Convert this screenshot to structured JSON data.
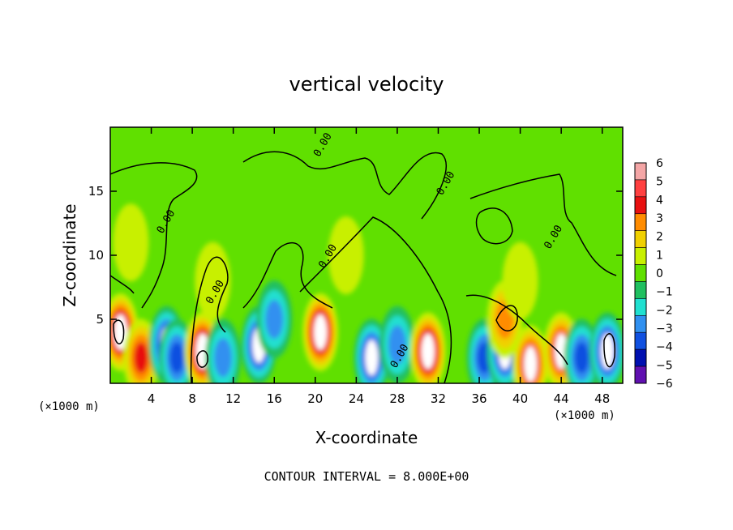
{
  "chart_data": {
    "type": "heatmap",
    "title": "vertical velocity",
    "xlabel": "X-coordinate",
    "ylabel": "Z-coordinate",
    "x_unit": "(×1000 m)",
    "xlim": [
      0,
      50
    ],
    "ylim": [
      0,
      20
    ],
    "x_ticks": [
      "4",
      "8",
      "12",
      "16",
      "20",
      "24",
      "28",
      "32",
      "36",
      "40",
      "44",
      "48"
    ],
    "y_ticks": [
      "5",
      "10",
      "15"
    ],
    "colorbar": {
      "ticks": [
        "6",
        "5",
        "4",
        "3",
        "2",
        "1",
        "0",
        "−1",
        "−2",
        "−3",
        "−4",
        "−5",
        "−6"
      ],
      "colors": [
        "#f4a6a6",
        "#ff4040",
        "#e81010",
        "#ff8c00",
        "#f0d000",
        "#c8f000",
        "#60e000",
        "#20c060",
        "#20e0d0",
        "#3090f0",
        "#1050e0",
        "#0010b0",
        "#6010b0"
      ]
    },
    "contour_label": "0.00",
    "cells": [
      {
        "x": 1,
        "z": 4,
        "w": 6
      },
      {
        "x": 3,
        "z": 2,
        "w": 4
      },
      {
        "x": 5.5,
        "z": 3,
        "w": -5
      },
      {
        "x": 6.5,
        "z": 2,
        "w": -4
      },
      {
        "x": 9,
        "z": 2.5,
        "w": 6
      },
      {
        "x": 11,
        "z": 2,
        "w": -3
      },
      {
        "x": 14.5,
        "z": 3,
        "w": -5
      },
      {
        "x": 16,
        "z": 5,
        "w": -3
      },
      {
        "x": 20.5,
        "z": 4,
        "w": 6
      },
      {
        "x": 25.5,
        "z": 2,
        "w": -5
      },
      {
        "x": 28,
        "z": 3,
        "w": -3
      },
      {
        "x": 31,
        "z": 2.5,
        "w": 6
      },
      {
        "x": 36.5,
        "z": 2,
        "w": -4
      },
      {
        "x": 38.5,
        "z": 2.5,
        "w": -5
      },
      {
        "x": 38.5,
        "z": 5,
        "w": 3
      },
      {
        "x": 41,
        "z": 1.5,
        "w": 5
      },
      {
        "x": 44,
        "z": 2.5,
        "w": 5
      },
      {
        "x": 46,
        "z": 2,
        "w": -4
      },
      {
        "x": 48.5,
        "z": 2.5,
        "w": -5
      },
      {
        "x": 2,
        "z": 11,
        "w": 1
      },
      {
        "x": 10,
        "z": 8,
        "w": 1
      },
      {
        "x": 23,
        "z": 10,
        "w": 1
      },
      {
        "x": 40,
        "z": 8,
        "w": 1
      }
    ],
    "contour_labels": [
      {
        "x": 21.5,
        "z": 9.8
      },
      {
        "x": 10.5,
        "z": 7
      },
      {
        "x": 5.7,
        "z": 12.5
      },
      {
        "x": 28.5,
        "z": 2
      },
      {
        "x": 43.5,
        "z": 11.3
      },
      {
        "x": 33,
        "z": 15.5
      },
      {
        "x": 21,
        "z": 18.5
      }
    ]
  },
  "footer": {
    "interval": "CONTOUR INTERVAL = 8.000E+00"
  }
}
